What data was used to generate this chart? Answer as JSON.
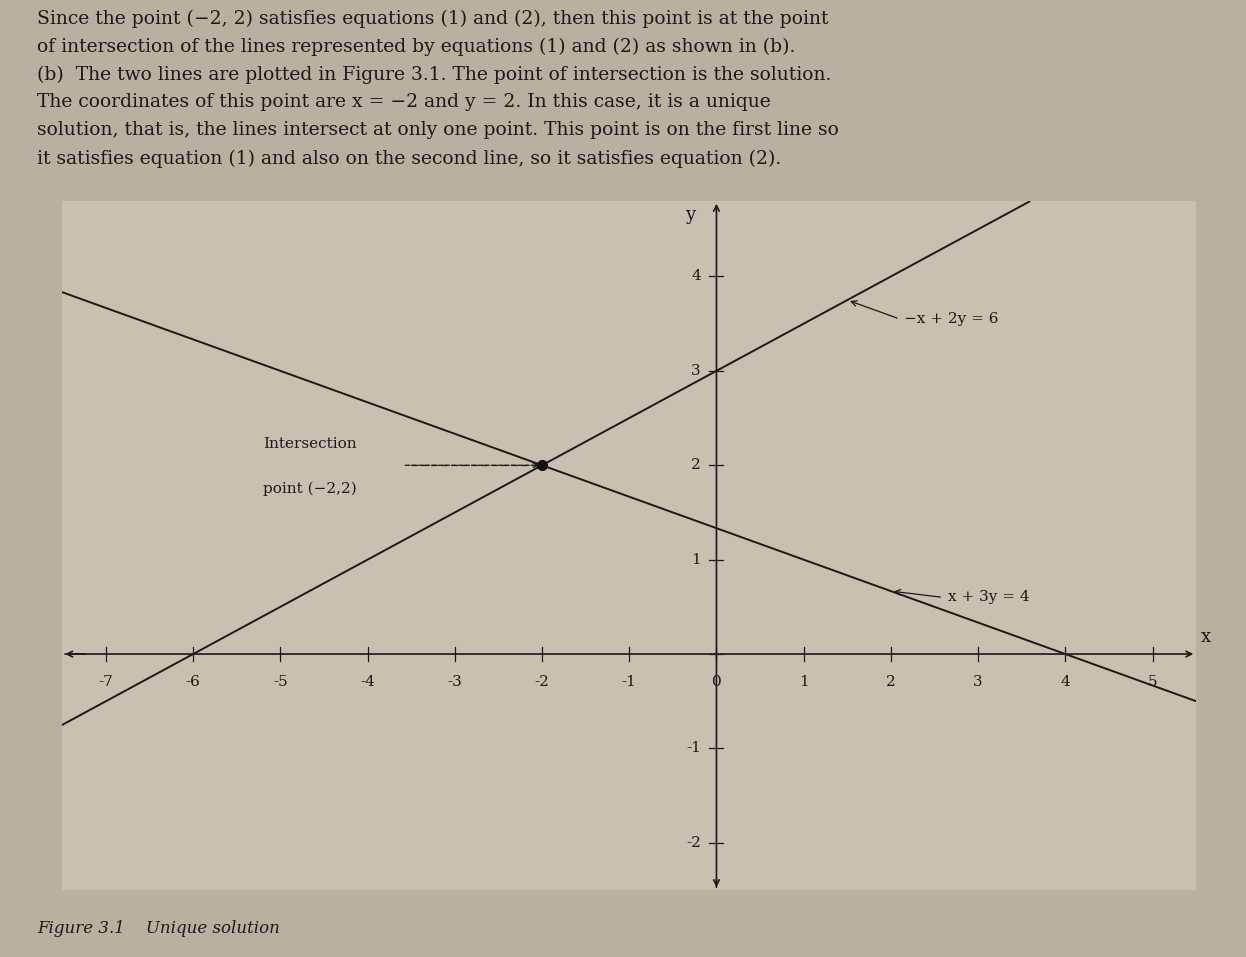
{
  "background_color": "#b8b0a0",
  "plot_bg_color": "#c8c0b0",
  "text_block_lines": [
    "Since the point (−2, 2) satisfies equations (1) and (2), then this point is at the point",
    "of intersection of the lines represented by equations (1) and (2) as shown in (b).",
    "(b)  The two lines are plotted in Figure 3.1. The point of intersection is the solution.",
    "The coordinates of this point are x = −2 and y = 2. In this case, it is a unique",
    "solution, that is, the lines intersect at only one point. This point is on the first line so",
    "it satisfies equation (1) and also on the second line, so it satisfies equation (2)."
  ],
  "caption": "Figure 3.1    Unique solution",
  "xlim": [
    -7.5,
    5.5
  ],
  "ylim": [
    -2.5,
    4.8
  ],
  "xticks": [
    -7,
    -6,
    -5,
    -4,
    -3,
    -2,
    -1,
    0,
    1,
    2,
    3,
    4,
    5
  ],
  "yticks": [
    -2,
    -1,
    0,
    1,
    2,
    3,
    4
  ],
  "xlabel": "x",
  "ylabel": "y",
  "line1_label": "−x + 2y = 6",
  "line2_label": "x + 3y = 4",
  "intersection_x": -2,
  "intersection_y": 2,
  "intersection_label_line1": "Intersection",
  "intersection_label_line2": "point (−2,2)",
  "line_color": "#1a1a1a",
  "point_color": "#111111",
  "axis_color": "#1a1a1a",
  "text_color": "#1a1a1a",
  "font_size_text": 13.5,
  "font_size_axis_tick": 11,
  "font_size_label": 11,
  "font_size_caption": 12
}
